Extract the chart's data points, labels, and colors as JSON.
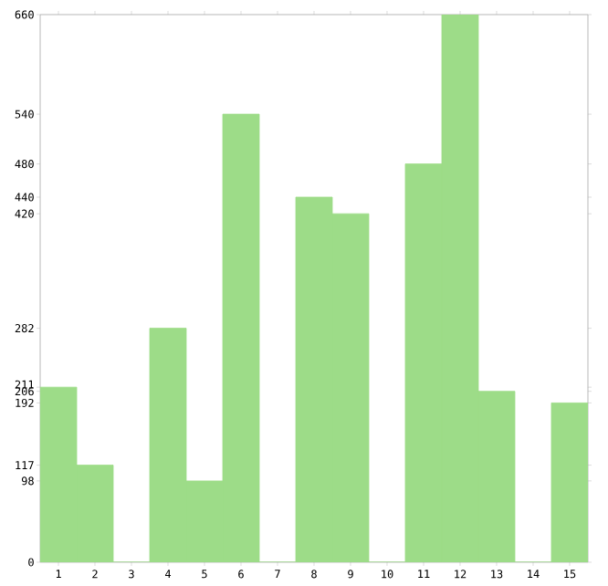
{
  "chart_data": {
    "type": "bar",
    "categories": [
      "1",
      "2",
      "3",
      "4",
      "5",
      "6",
      "7",
      "8",
      "9",
      "10",
      "11",
      "12",
      "13",
      "14",
      "15"
    ],
    "values": [
      211,
      117,
      0,
      282,
      98,
      540,
      0,
      440,
      420,
      0,
      480,
      660,
      206,
      0,
      192
    ],
    "color": "#9ddc88",
    "ylim": [
      0,
      660
    ],
    "yticks": [
      0,
      98,
      117,
      192,
      206,
      211,
      282,
      420,
      440,
      480,
      540,
      660
    ],
    "grid": false
  }
}
